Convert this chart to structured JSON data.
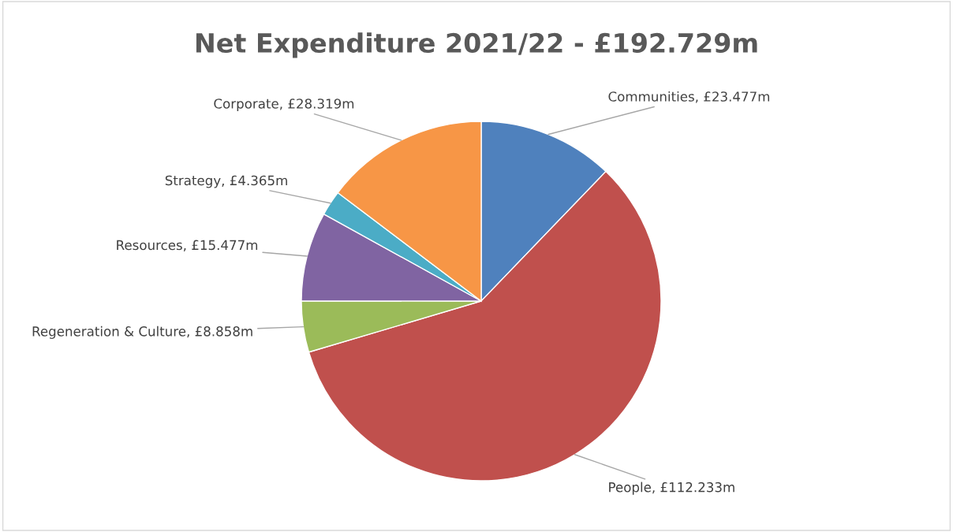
{
  "chart_data": {
    "type": "pie",
    "title": "Net Expenditure 2021/22 - £192.729m",
    "categories": [
      "Communities",
      "People",
      "Regeneration & Culture",
      "Resources",
      "Strategy",
      "Corporate"
    ],
    "values": [
      23.477,
      112.233,
      8.858,
      15.477,
      4.365,
      28.319
    ],
    "value_labels": [
      "£23.477m",
      "£112.233m",
      "£8.858m",
      "£15.477m",
      "£4.365m",
      "£28.319m"
    ],
    "colors": [
      "#4f81bd",
      "#c0504d",
      "#9bbb59",
      "#8064a2",
      "#4bacc6",
      "#f79646"
    ],
    "legend": false
  }
}
